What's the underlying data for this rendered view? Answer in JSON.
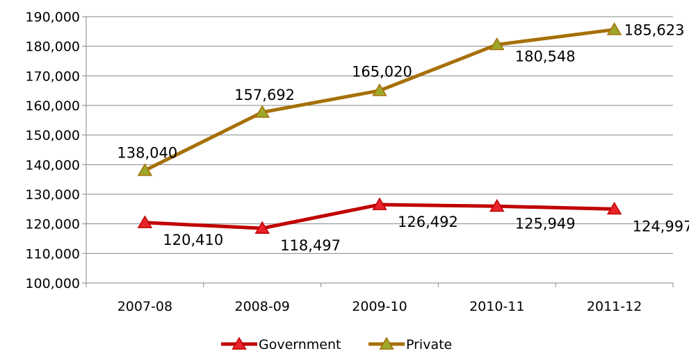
{
  "chart_data": {
    "type": "line",
    "categories": [
      "2007-08",
      "2008-09",
      "2009-10",
      "2010-11",
      "2011-12"
    ],
    "series": [
      {
        "name": "Government",
        "values": [
          120410,
          118497,
          126492,
          125949,
          124997
        ],
        "labels": [
          "120,410",
          "118,497",
          "126,492",
          "125,949",
          "124,997"
        ],
        "color": "#C00000",
        "marker_fill": "#E8242A"
      },
      {
        "name": "Private",
        "values": [
          138040,
          157692,
          165020,
          180548,
          185623
        ],
        "labels": [
          "138,040",
          "157,692",
          "165,020",
          "180,548",
          "185,623"
        ],
        "color": "#A67008",
        "marker_fill": "#9BA82A"
      }
    ],
    "y_ticks": [
      "100,000",
      "110,000",
      "120,000",
      "130,000",
      "140,000",
      "150,000",
      "160,000",
      "170,000",
      "180,000",
      "190,000"
    ],
    "ylim": [
      100000,
      190000
    ],
    "grid": true,
    "legend": "bottom",
    "marker": "triangle"
  }
}
